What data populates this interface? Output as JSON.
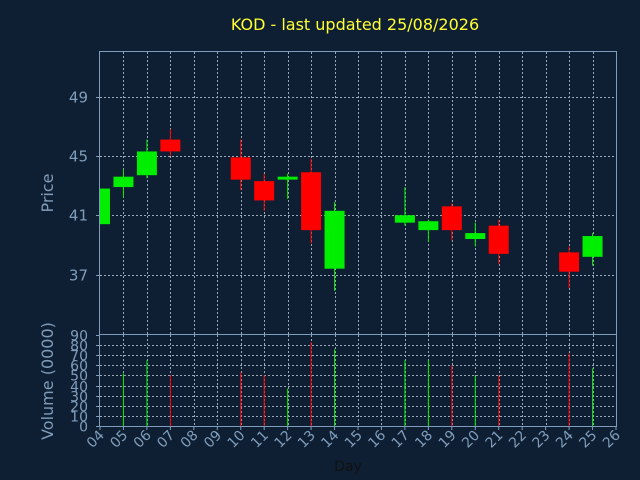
{
  "chart_data": {
    "type": "candlestick",
    "title": "KOD - last updated 25/08/2026",
    "ylabel": "Price",
    "volume_label": "Volume (0000)",
    "xlabel": "Day",
    "ylim": [
      33,
      52
    ],
    "price_ticks": [
      "37",
      "41",
      "45",
      "49"
    ],
    "volume_ylim": [
      0,
      90
    ],
    "volume_ticks": [
      "0",
      "10",
      "20",
      "30",
      "40",
      "50",
      "60",
      "70",
      "80",
      "90"
    ],
    "days": [
      "04",
      "05",
      "06",
      "07",
      "08",
      "09",
      "10",
      "11",
      "12",
      "13",
      "14",
      "15",
      "16",
      "17",
      "18",
      "19",
      "20",
      "21",
      "22",
      "23",
      "24",
      "25",
      "26"
    ],
    "grid": true,
    "colors": {
      "up": "#00ee00",
      "down": "#ff0000",
      "background": "#0f1f33",
      "title": "#ffff33",
      "axis_text": "#7f9dbb",
      "frame": "#7f9dbb",
      "grid": "#9aa8b8"
    },
    "candles": [
      {
        "day": "04",
        "open": 40.4,
        "high": 42.8,
        "low": 40.4,
        "close": 42.8,
        "volume": 0
      },
      {
        "day": "05",
        "open": 42.9,
        "high": 44.1,
        "low": 42.2,
        "close": 43.6,
        "volume": 52
      },
      {
        "day": "06",
        "open": 43.7,
        "high": 46.1,
        "low": 43.5,
        "close": 45.3,
        "volume": 65
      },
      {
        "day": "07",
        "open": 46.1,
        "high": 46.8,
        "low": 45.0,
        "close": 45.3,
        "volume": 50
      },
      {
        "day": "10",
        "open": 44.9,
        "high": 46.1,
        "low": 42.7,
        "close": 43.4,
        "volume": 53
      },
      {
        "day": "11",
        "open": 43.3,
        "high": 43.8,
        "low": 41.3,
        "close": 42.0,
        "volume": 50
      },
      {
        "day": "12",
        "open": 43.4,
        "high": 43.8,
        "low": 42.1,
        "close": 43.6,
        "volume": 37
      },
      {
        "day": "13",
        "open": 43.9,
        "high": 44.8,
        "low": 39.1,
        "close": 40.0,
        "volume": 83
      },
      {
        "day": "14",
        "open": 37.4,
        "high": 41.9,
        "low": 35.9,
        "close": 41.3,
        "volume": 76
      },
      {
        "day": "17",
        "open": 40.5,
        "high": 42.9,
        "low": 40.3,
        "close": 41.0,
        "volume": 65
      },
      {
        "day": "18",
        "open": 40.0,
        "high": 40.7,
        "low": 39.2,
        "close": 40.6,
        "volume": 65
      },
      {
        "day": "19",
        "open": 41.6,
        "high": 41.8,
        "low": 39.3,
        "close": 40.0,
        "volume": 60
      },
      {
        "day": "20",
        "open": 39.4,
        "high": 40.5,
        "low": 38.9,
        "close": 39.8,
        "volume": 50
      },
      {
        "day": "21",
        "open": 40.3,
        "high": 40.7,
        "low": 37.7,
        "close": 38.4,
        "volume": 50
      },
      {
        "day": "24",
        "open": 38.5,
        "high": 38.9,
        "low": 36.1,
        "close": 37.2,
        "volume": 72
      },
      {
        "day": "25",
        "open": 38.2,
        "high": 39.8,
        "low": 37.6,
        "close": 39.6,
        "volume": 57
      }
    ]
  }
}
